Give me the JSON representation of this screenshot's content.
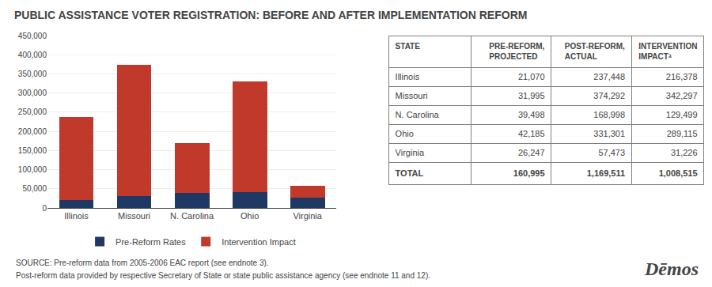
{
  "chart_data": [
    {
      "type": "bar",
      "title": "PUBLIC ASSISTANCE VOTER REGISTRATION: BEFORE AND AFTER IMPLEMENTATION REFORM",
      "categories": [
        "Illinois",
        "Missouri",
        "N. Carolina",
        "Ohio",
        "Virginia"
      ],
      "series": [
        {
          "name": "Pre-Reform Rates",
          "color": "#1f3864",
          "values": [
            21070,
            31995,
            39498,
            42185,
            26247
          ]
        },
        {
          "name": "Intervention Impact",
          "color": "#c0392b",
          "values": [
            216378,
            342297,
            129499,
            289115,
            31226
          ]
        }
      ],
      "stacked": true,
      "ylim": [
        0,
        450000
      ],
      "yticks": [
        0,
        {
          "value": 50000,
          "label": "50,000"
        },
        {
          "value": 100000,
          "label": "100,000"
        },
        {
          "value": 150000,
          "label": "150,000"
        },
        {
          "value": 200000,
          "label": "200,000"
        },
        {
          "value": 250000,
          "label": "250,000"
        },
        {
          "value": 300000,
          "label": "300,000"
        },
        {
          "value": 350000,
          "label": "350,000"
        },
        {
          "value": 400000,
          "label": "400,000"
        },
        {
          "value": 450000,
          "label": "450,000"
        }
      ],
      "grid": true,
      "legend": "bottom",
      "annotations": [
        "SOURCE: Pre-reform data from 2005-2006 EAC report (see endnote 3).",
        "Post-reform data provided by respective Secretary of State or state public assistance agency (see endnote 11 and 12).",
        "Dēmos"
      ]
    },
    {
      "type": "table",
      "headers": [
        "STATE",
        "PRE-REFORM,\nPROJECTED",
        "POST-REFORM,\nACTUAL",
        "INTERVENTION\nIMPACTᵃ"
      ],
      "rows": [
        [
          "Illinois",
          "21,070",
          "237,448",
          "216,378"
        ],
        [
          "Missouri",
          "31,995",
          "374,292",
          "342,297"
        ],
        [
          "N. Carolina",
          "39,498",
          "168,998",
          "129,499"
        ],
        [
          "Ohio",
          "42,185",
          "331,301",
          "289,115"
        ],
        [
          "Virginia",
          "26,247",
          "57,473",
          "31,226"
        ]
      ],
      "total": [
        "TOTAL",
        "160,995",
        "1,169,511",
        "1,008,515"
      ]
    }
  ]
}
